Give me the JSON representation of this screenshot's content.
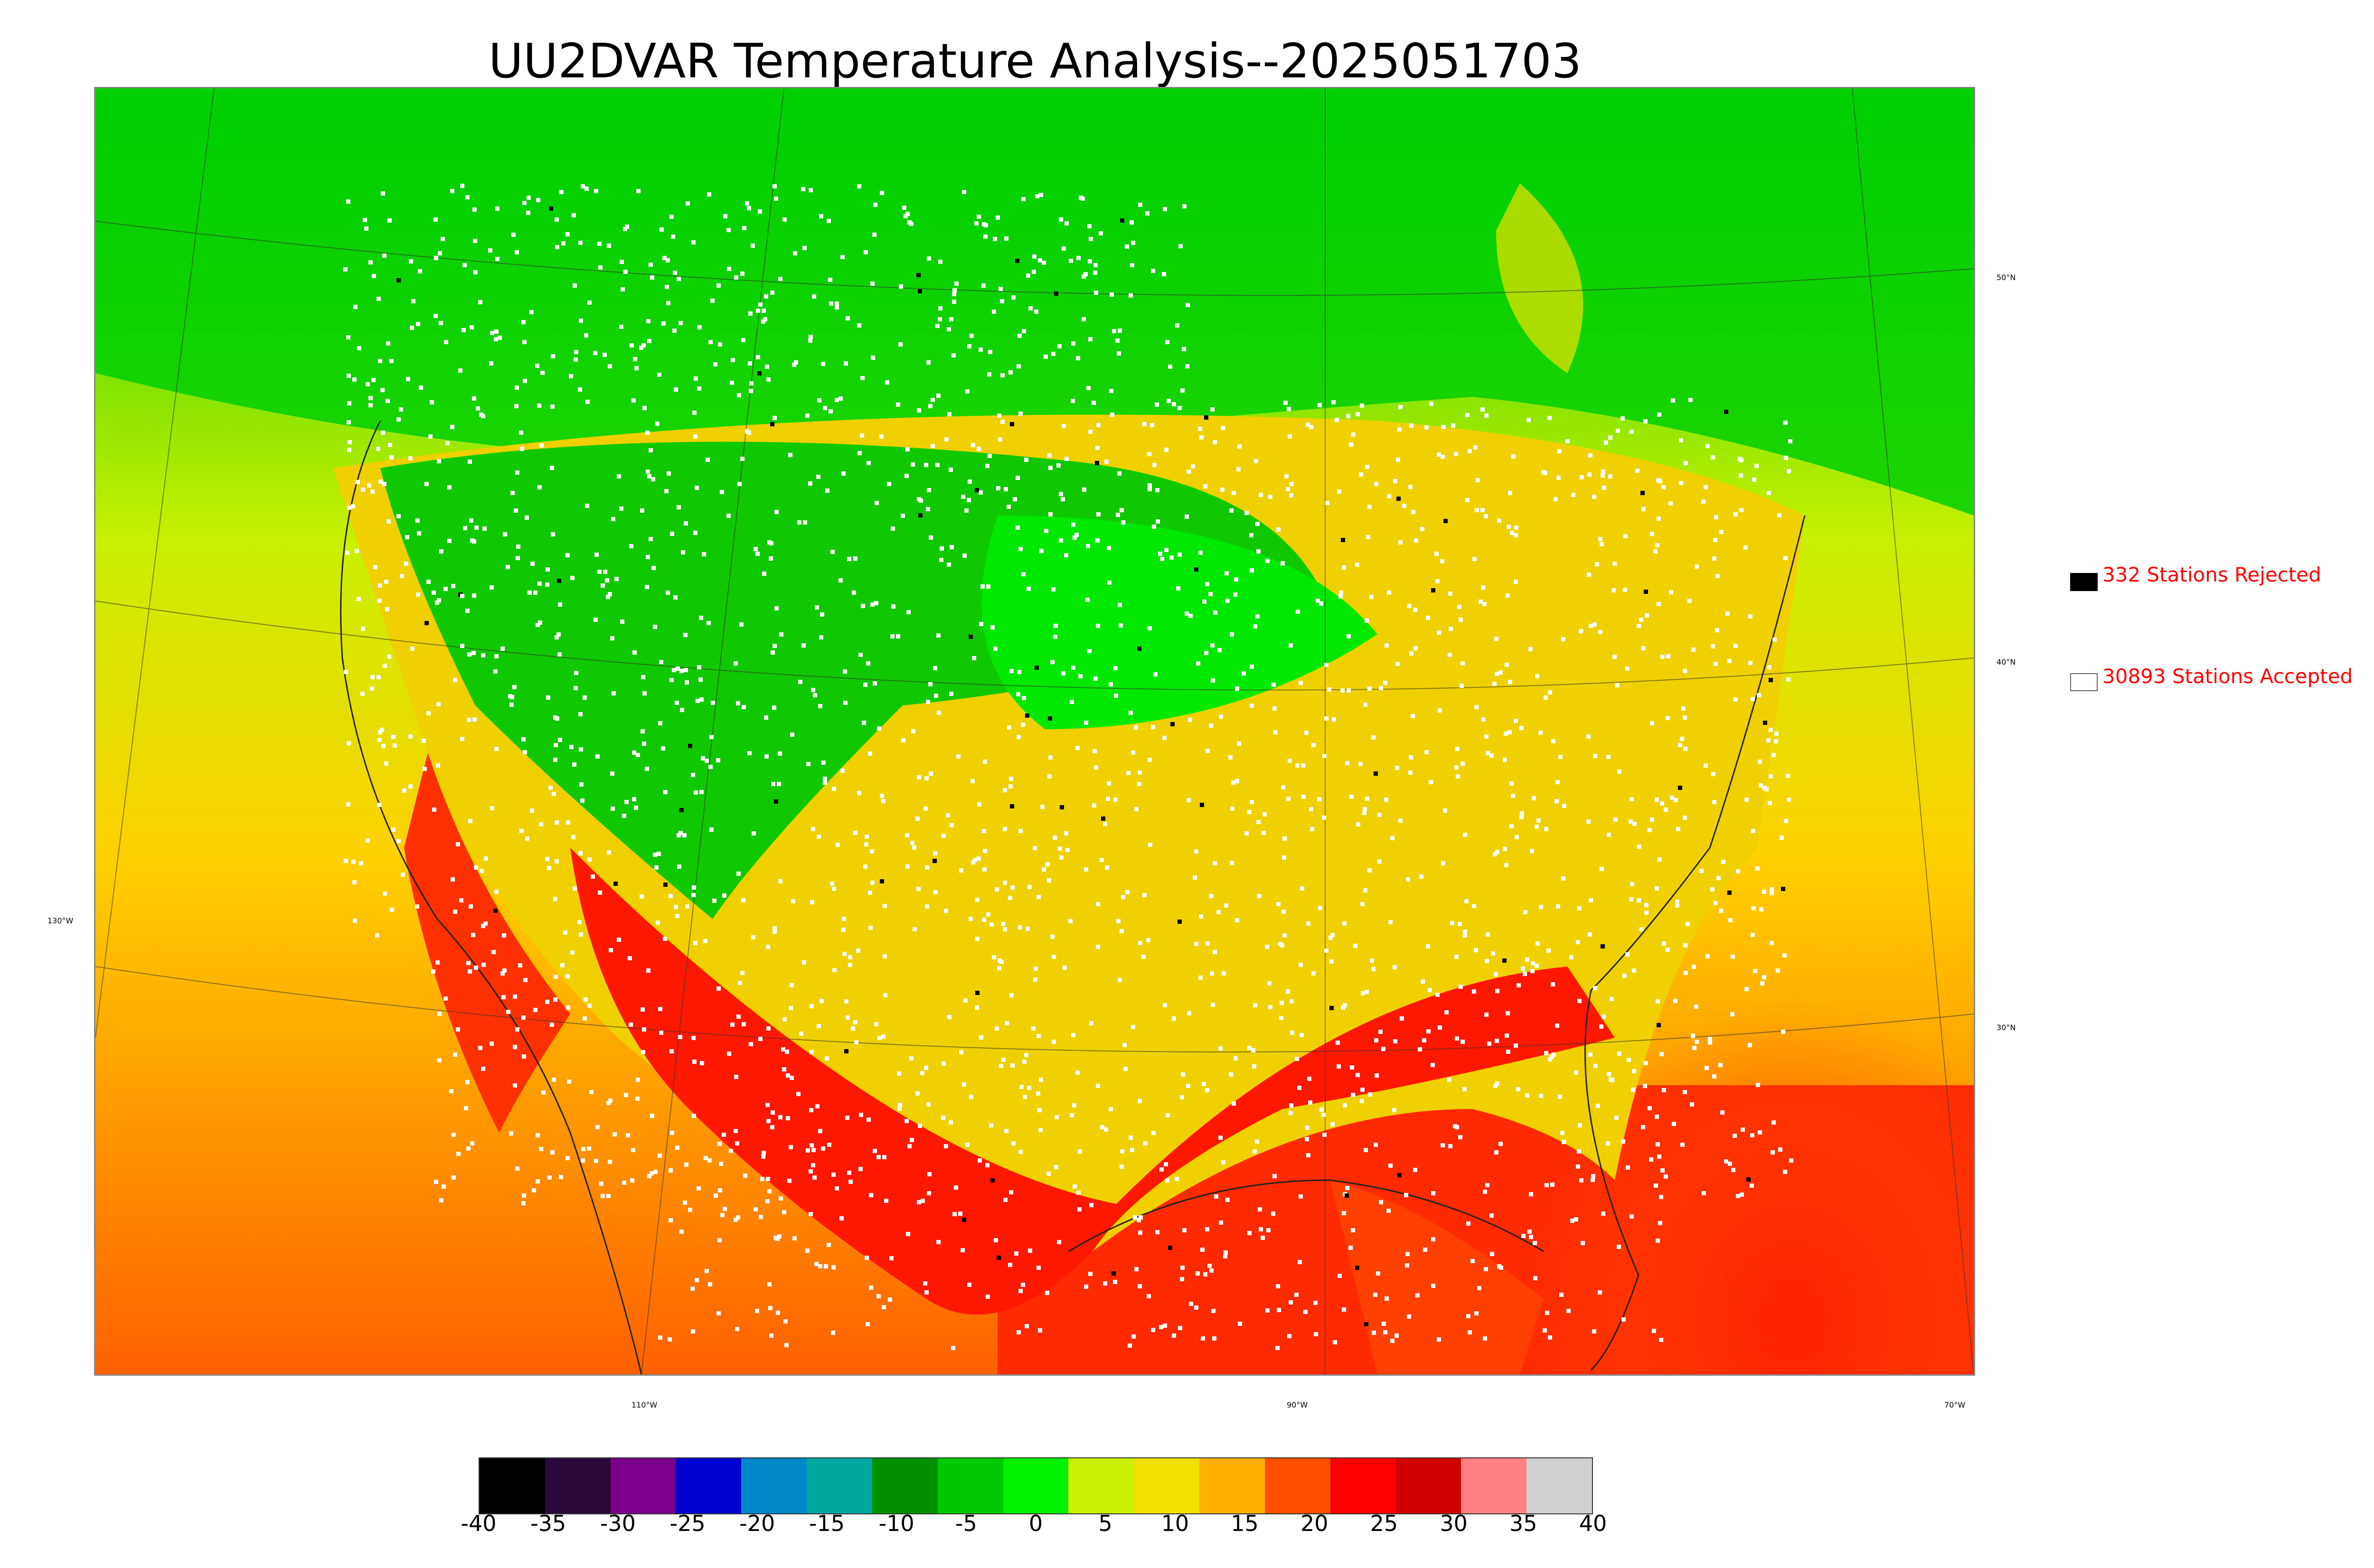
{
  "title": "UU2DVAR Temperature Analysis--2025051703",
  "legend": {
    "rejected": {
      "label": "332 Stations Rejected",
      "swatch_color": "#000000"
    },
    "accepted": {
      "label": "30893 Stations Accepted",
      "swatch_color": "#ffffff"
    },
    "text_color": "#ff0000"
  },
  "graticule": {
    "lat_labels": [
      "50°N",
      "40°N",
      "30°N"
    ],
    "lon_labels": [
      "130°W",
      "110°W",
      "90°W",
      "70°W"
    ]
  },
  "colorbar": {
    "ticks": [
      "-40",
      "-35",
      "-30",
      "-25",
      "-20",
      "-15",
      "-10",
      "-5",
      "0",
      "5",
      "10",
      "15",
      "20",
      "25",
      "30",
      "35",
      "40"
    ],
    "colors": [
      "#000000",
      "#2a0a3a",
      "#7a008a",
      "#0000d0",
      "#0088c8",
      "#00a8a0",
      "#009000",
      "#00c800",
      "#00f000",
      "#c8f000",
      "#f0e000",
      "#ffb000",
      "#ff5000",
      "#ff0000",
      "#d00000",
      "#ff8080",
      "#d0d0d0"
    ],
    "min": -40,
    "max": 40
  }
}
